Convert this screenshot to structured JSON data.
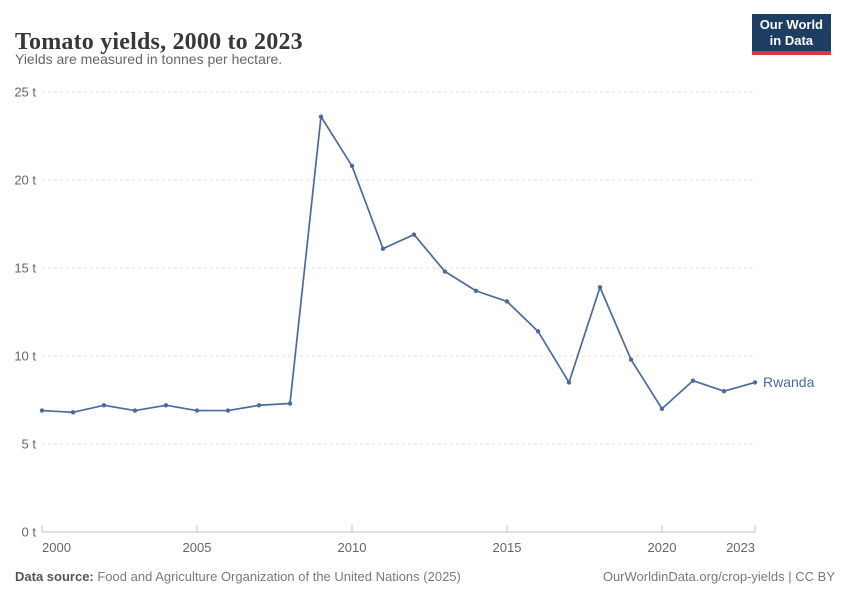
{
  "logo": {
    "line1": "Our World",
    "line2": "in Data"
  },
  "footer": {
    "source_label": "Data source:",
    "source_text": " Food and Agriculture Organization of the United Nations (2025)",
    "credit": "OurWorldinData.org/crop-yields | CC BY"
  },
  "colors": {
    "line": "#4C6A9C",
    "logo_bg": "#1d3d63",
    "logo_accent": "#d93a3f",
    "grid": "#dddddd",
    "axis": "#c2c2c2",
    "tick_label": "#666666"
  },
  "chart_data": {
    "type": "line",
    "title": "Tomato yields, 2000 to 2023",
    "subtitle": "Yields are measured in tonnes per hectare.",
    "x": [
      2000,
      2001,
      2002,
      2003,
      2004,
      2005,
      2006,
      2007,
      2008,
      2009,
      2010,
      2011,
      2012,
      2013,
      2014,
      2015,
      2016,
      2017,
      2018,
      2019,
      2020,
      2021,
      2022,
      2023
    ],
    "xlim": [
      2000,
      2023
    ],
    "ylim": [
      0,
      25
    ],
    "yticks": [
      0,
      5,
      10,
      15,
      20,
      25
    ],
    "xticks": [
      2000,
      2005,
      2010,
      2015,
      2020,
      2023
    ],
    "ytick_suffix": " t",
    "xlabel": "",
    "ylabel": "tonnes per hectare",
    "grid": "horizontal-dashed",
    "legend": "inline-end-label",
    "series": [
      {
        "name": "Rwanda",
        "color": "#4C6A9C",
        "values": [
          6.9,
          6.8,
          7.2,
          6.9,
          7.2,
          6.9,
          6.9,
          7.2,
          7.3,
          23.6,
          20.8,
          16.1,
          16.9,
          14.8,
          13.7,
          13.1,
          11.4,
          8.5,
          13.9,
          9.8,
          7.0,
          8.6,
          8.0,
          8.5
        ]
      }
    ]
  }
}
